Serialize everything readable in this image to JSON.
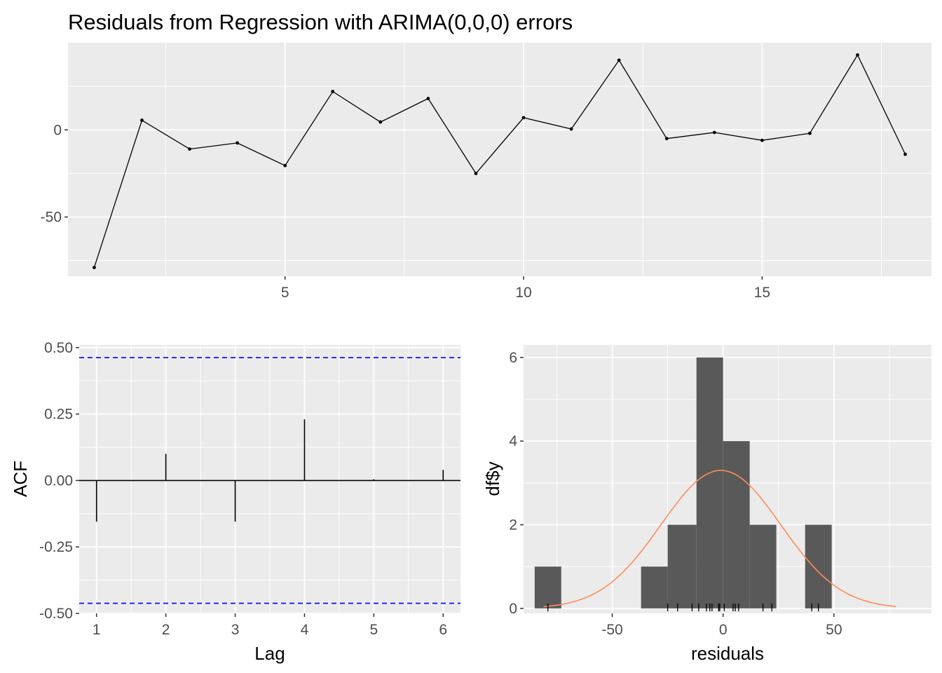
{
  "chart_data": [
    {
      "type": "line",
      "title": "Residuals from Regression with ARIMA(0,0,0) errors",
      "x": [
        1,
        2,
        3,
        4,
        5,
        6,
        7,
        8,
        9,
        10,
        11,
        12,
        13,
        14,
        15,
        16,
        17,
        18
      ],
      "series": [
        {
          "values": [
            -79,
            5.5,
            -11,
            -7.5,
            -20.5,
            22,
            4.5,
            18,
            -25,
            7,
            0.5,
            40,
            -5,
            -1.5,
            -6,
            -2,
            43,
            -14
          ]
        }
      ],
      "xticks": [
        "5",
        "10",
        "15"
      ],
      "yticks": [
        "0",
        "-50"
      ],
      "xlim": [
        0.45,
        18.55
      ],
      "ylim": [
        -84,
        50
      ],
      "xlabel": "",
      "ylabel": "",
      "grid": true,
      "line_color": "#000000"
    },
    {
      "type": "bar",
      "categories": [
        "1",
        "2",
        "3",
        "4",
        "5",
        "6"
      ],
      "values": [
        -0.155,
        0.1,
        -0.155,
        0.23,
        0.005,
        0.04
      ],
      "confidence_limits": [
        0.462,
        -0.462
      ],
      "yticks": [
        "0.50",
        "0.25",
        "0.00",
        "-0.25",
        "-0.50"
      ],
      "xlabel": "Lag",
      "ylabel": "ACF",
      "xlim": [
        0.75,
        6.25
      ],
      "ylim": [
        -0.5,
        0.51
      ],
      "grid": true,
      "line_color": "#000000",
      "limit_color": "#0000ff"
    },
    {
      "type": "bar",
      "subtype": "histogram",
      "bins": [
        {
          "x0": -85,
          "x1": -73,
          "count": 1
        },
        {
          "x0": -73,
          "x1": -61,
          "count": 0
        },
        {
          "x0": -61,
          "x1": -49,
          "count": 0
        },
        {
          "x0": -49,
          "x1": -37,
          "count": 0
        },
        {
          "x0": -37,
          "x1": -25,
          "count": 1
        },
        {
          "x0": -25,
          "x1": -12,
          "count": 2
        },
        {
          "x0": -12,
          "x1": 0,
          "count": 6
        },
        {
          "x0": 0,
          "x1": 12,
          "count": 4
        },
        {
          "x0": 12,
          "x1": 24,
          "count": 2
        },
        {
          "x0": 24,
          "x1": 37,
          "count": 0
        },
        {
          "x0": 37,
          "x1": 49,
          "count": 2
        }
      ],
      "density": {
        "mean": -1,
        "sd": 27,
        "scale": 3.3,
        "x_range": [
          -81,
          78
        ]
      },
      "rug": [
        -79,
        -25,
        -20.5,
        -14,
        -11,
        -7.5,
        -6,
        -5,
        -2,
        -1.5,
        0.5,
        4.5,
        5.5,
        7,
        18,
        22,
        40,
        43
      ],
      "xticks": [
        "-50",
        "0",
        "50"
      ],
      "yticks": [
        "6",
        "4",
        "2",
        "0"
      ],
      "xlabel": "residuals",
      "ylabel": "df$y",
      "xlim": [
        -90,
        94
      ],
      "ylim": [
        -0.12,
        6.3
      ],
      "grid": true,
      "bar_color": "#595959",
      "density_color": "#ff8c5a"
    }
  ]
}
